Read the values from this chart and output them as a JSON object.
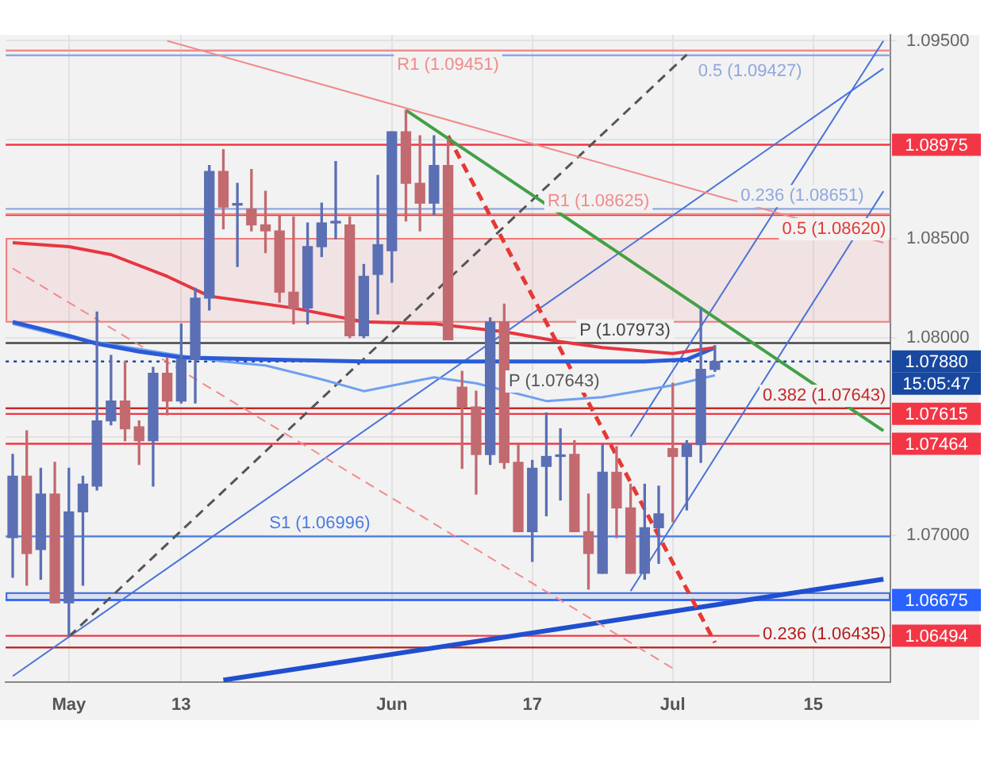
{
  "chart_data": {
    "type": "candlestick",
    "categories": [
      null,
      null,
      null,
      null,
      "May",
      null,
      null,
      null,
      null,
      null,
      null,
      null,
      "13",
      null,
      null,
      null,
      null,
      null,
      null,
      null,
      null,
      null,
      null,
      null,
      null,
      null,
      null,
      "Jun",
      null,
      null,
      null,
      null,
      null,
      null,
      null,
      null,
      null,
      "17",
      null,
      null,
      null,
      null,
      null,
      null,
      null,
      null,
      null,
      "Jul",
      null,
      null,
      null,
      null,
      null,
      null,
      null,
      null,
      null,
      "15",
      null,
      null,
      null,
      null,
      null
    ],
    "ohlc": [
      [
        1.0699,
        1.0741,
        1.0679,
        1.073
      ],
      [
        1.073,
        1.0753,
        1.0675,
        1.0691
      ],
      [
        1.0693,
        1.0734,
        1.0678,
        1.0721
      ],
      [
        1.0721,
        1.0737,
        1.0666,
        1.0666
      ],
      [
        1.0666,
        1.0734,
        1.0649,
        1.0712
      ],
      [
        1.0712,
        1.073,
        1.0675,
        1.0726
      ],
      [
        1.0725,
        1.0813,
        1.0723,
        1.0758
      ],
      [
        1.0758,
        1.0791,
        1.0756,
        1.0768
      ],
      [
        1.0768,
        1.0788,
        1.0748,
        1.0754
      ],
      [
        1.0755,
        1.0758,
        1.0736,
        1.0748
      ],
      [
        1.0748,
        1.0785,
        1.0725,
        1.0782
      ],
      [
        1.0782,
        1.079,
        1.0761,
        1.0768
      ],
      [
        1.0768,
        1.0807,
        1.0767,
        1.0789
      ],
      [
        1.0789,
        1.0825,
        1.0767,
        1.082
      ],
      [
        1.082,
        1.0887,
        1.0814,
        1.0884
      ],
      [
        1.0884,
        1.0895,
        1.0855,
        1.0866
      ],
      [
        1.0867,
        1.0878,
        1.0836,
        1.0867
      ],
      [
        1.0865,
        1.0885,
        1.0854,
        1.0857
      ],
      [
        1.0857,
        1.0874,
        1.0843,
        1.0854
      ],
      [
        1.0854,
        1.0862,
        1.0818,
        1.0823
      ],
      [
        1.0823,
        1.0861,
        1.0807,
        1.0815
      ],
      [
        1.0815,
        1.0858,
        1.0807,
        1.0846
      ],
      [
        1.0846,
        1.0868,
        1.0841,
        1.0858
      ],
      [
        1.0858,
        1.0889,
        1.085,
        1.0858
      ],
      [
        1.0857,
        1.0861,
        1.08,
        1.0801
      ],
      [
        1.0801,
        1.0837,
        1.08,
        1.0831
      ],
      [
        1.0832,
        1.0882,
        1.0812,
        1.0847
      ],
      [
        1.0844,
        1.0904,
        1.0828,
        1.0904
      ],
      [
        1.0904,
        1.0915,
        1.0859,
        1.0878
      ],
      [
        1.0878,
        1.0902,
        1.0854,
        1.0868
      ],
      [
        1.0868,
        1.0902,
        1.0862,
        1.0887
      ],
      [
        1.0887,
        1.09,
        1.0799,
        1.0799
      ],
      [
        1.0775,
        1.0783,
        1.0734,
        1.0765
      ],
      [
        1.0765,
        1.0773,
        1.0721,
        1.0741
      ],
      [
        1.0741,
        1.081,
        1.0736,
        1.0808
      ],
      [
        1.0808,
        1.0817,
        1.0734,
        1.0737
      ],
      [
        1.0737,
        1.0746,
        1.0702,
        1.0702
      ],
      [
        1.0702,
        1.0738,
        1.0687,
        1.0734
      ],
      [
        1.0735,
        1.0762,
        1.071,
        1.074
      ],
      [
        1.074,
        1.0754,
        1.0718,
        1.074
      ],
      [
        1.0741,
        1.0748,
        1.0702,
        1.0702
      ],
      [
        1.0702,
        1.0721,
        1.0673,
        1.0691
      ],
      [
        1.0681,
        1.0746,
        1.0681,
        1.0732
      ],
      [
        1.0732,
        1.0745,
        1.0699,
        1.0714
      ],
      [
        1.0714,
        1.0726,
        1.0681,
        1.0681
      ],
      [
        1.0681,
        1.0726,
        1.0678,
        1.0704
      ],
      [
        1.0704,
        1.0725,
        1.0686,
        1.0711
      ],
      [
        1.0744,
        1.0777,
        1.0707,
        1.074
      ],
      [
        1.074,
        1.0748,
        1.0713,
        1.0746
      ],
      [
        1.0746,
        1.0815,
        1.0737,
        1.0784
      ],
      [
        1.0784,
        1.0796,
        1.0783,
        1.0788
      ],
      null,
      null,
      null,
      null,
      null,
      null,
      null,
      null,
      null,
      null,
      null,
      null
    ],
    "colors": [
      "#5a6fb4",
      "#c26a70",
      "#5a6fb4",
      "#c26a70",
      "#5a6fb4",
      "#5a6fb4",
      "#5a6fb4",
      "#5a6fb4",
      "#c26a70",
      "#c26a70",
      "#5a6fb4",
      "#c26a70",
      "#5a6fb4",
      "#5a6fb4",
      "#5a6fb4",
      "#c26a70",
      "#5a6fb4",
      "#c26a70",
      "#c26a70",
      "#c26a70",
      "#c26a70",
      "#5a6fb4",
      "#5a6fb4",
      "#5a6fb4",
      "#c26a70",
      "#5a6fb4",
      "#5a6fb4",
      "#5a6fb4",
      "#c26a70",
      "#c26a70",
      "#5a6fb4",
      "#c26a70",
      "#c26a70",
      "#c26a70",
      "#5a6fb4",
      "#c26a70",
      "#c26a70",
      "#5a6fb4",
      "#5a6fb4",
      "#5a6fb4",
      "#c26a70",
      "#c26a70",
      "#5a6fb4",
      "#c26a70",
      "#c26a70",
      "#5a6fb4",
      "#5a6fb4",
      "#c26a70",
      "#5a6fb4",
      "#5a6fb4",
      "#5a6fb4",
      null,
      null,
      null,
      null,
      null,
      null,
      null,
      null,
      null,
      null,
      null,
      null
    ],
    "series": [
      {
        "type": "line",
        "color": "#e8353f",
        "values": [
          1.0848,
          null,
          null,
          null,
          1.0846,
          null,
          null,
          1.0842,
          null,
          null,
          null,
          1.0831,
          null,
          null,
          1.0821,
          null,
          null,
          1.0818,
          null,
          null,
          1.0815,
          null,
          null,
          null,
          null,
          1.0808,
          null,
          null,
          null,
          null,
          1.0807,
          null,
          null,
          null,
          null,
          1.0803,
          null,
          null,
          null,
          1.0798,
          null,
          null,
          1.0795,
          null,
          null,
          null,
          null,
          1.0792,
          null,
          null,
          1.0795,
          null,
          null,
          null,
          null,
          null,
          null,
          null,
          null,
          null,
          null,
          null,
          null
        ]
      },
      {
        "type": "line",
        "color": "#2a5bd7",
        "values": [
          1.0808,
          null,
          null,
          null,
          1.0801,
          null,
          1.0797,
          null,
          null,
          1.0793,
          null,
          null,
          1.079,
          null,
          null,
          null,
          null,
          null,
          1.0789,
          null,
          null,
          null,
          null,
          null,
          null,
          1.0788,
          null,
          null,
          null,
          null,
          null,
          null,
          null,
          null,
          null,
          1.0788,
          null,
          null,
          null,
          null,
          null,
          null,
          null,
          null,
          null,
          1.0788,
          null,
          null,
          1.0789,
          null,
          1.0795,
          null,
          null,
          null,
          null,
          null,
          null,
          null,
          null,
          null,
          null,
          null,
          null
        ]
      },
      {
        "type": "line",
        "color": "#6fa0f0",
        "values": [
          1.0807,
          null,
          null,
          null,
          1.08,
          null,
          null,
          null,
          null,
          null,
          null,
          1.0792,
          null,
          null,
          null,
          1.0788,
          null,
          null,
          1.0786,
          null,
          null,
          null,
          1.0779,
          null,
          null,
          1.0773,
          null,
          null,
          null,
          null,
          1.078,
          null,
          null,
          1.0777,
          null,
          null,
          null,
          null,
          1.0768,
          null,
          null,
          null,
          1.077,
          null,
          null,
          null,
          null,
          1.0776,
          null,
          null,
          1.0781,
          null,
          null,
          null,
          null,
          null,
          null,
          null,
          null,
          null,
          null,
          null,
          null
        ]
      },
      {
        "type": "line",
        "color": "#f08a8a",
        "values": [
          null,
          null,
          null,
          null,
          null,
          null,
          null,
          null,
          null,
          null,
          null,
          1.095,
          null,
          null,
          null,
          null,
          null,
          null,
          null,
          null,
          null,
          null,
          null,
          null,
          null,
          null,
          null,
          null,
          null,
          null,
          null,
          null,
          null,
          null,
          null,
          null,
          null,
          null,
          null,
          null,
          null,
          null,
          null,
          null,
          null,
          null,
          null,
          null,
          null,
          null,
          null,
          null,
          null,
          null,
          null,
          null,
          null,
          null,
          null,
          null,
          null,
          null,
          1.0848
        ]
      },
      {
        "type": "line",
        "color": "#43a047",
        "values": [
          null,
          null,
          null,
          null,
          null,
          null,
          null,
          null,
          null,
          null,
          null,
          null,
          null,
          null,
          null,
          null,
          null,
          null,
          null,
          null,
          null,
          null,
          null,
          null,
          null,
          null,
          null,
          null,
          1.0915,
          null,
          null,
          null,
          null,
          null,
          null,
          null,
          null,
          null,
          null,
          null,
          null,
          null,
          null,
          null,
          null,
          null,
          null,
          null,
          null,
          null,
          null,
          null,
          null,
          null,
          null,
          null,
          null,
          null,
          null,
          null,
          null,
          null,
          1.0753
        ]
      },
      {
        "type": "line",
        "color": "#e53935",
        "line_style": "dashed",
        "values": [
          null,
          null,
          null,
          null,
          null,
          null,
          null,
          null,
          null,
          null,
          null,
          null,
          null,
          null,
          null,
          null,
          null,
          null,
          null,
          null,
          null,
          null,
          null,
          null,
          null,
          null,
          null,
          null,
          null,
          null,
          null,
          1.0902,
          null,
          null,
          null,
          null,
          null,
          null,
          null,
          null,
          null,
          null,
          null,
          null,
          null,
          null,
          null,
          null,
          null,
          null,
          1.0646,
          null,
          null,
          null,
          null,
          null,
          null,
          null,
          null,
          null,
          null,
          null,
          null
        ]
      },
      {
        "type": "line",
        "color": "#f28b8b",
        "line_style": "dashed",
        "values": [
          1.0835,
          null,
          null,
          null,
          null,
          null,
          null,
          null,
          null,
          null,
          null,
          null,
          null,
          null,
          null,
          null,
          null,
          null,
          null,
          null,
          null,
          null,
          null,
          null,
          null,
          null,
          null,
          null,
          null,
          null,
          null,
          null,
          null,
          null,
          null,
          null,
          null,
          null,
          null,
          null,
          null,
          null,
          null,
          null,
          null,
          null,
          null,
          1.0633,
          null,
          null,
          null,
          null,
          null,
          null,
          null,
          null,
          null,
          null,
          null,
          null,
          null,
          null,
          null
        ]
      },
      {
        "type": "line",
        "color": "#555555",
        "line_style": "dashed",
        "values": [
          null,
          null,
          null,
          null,
          1.0649,
          null,
          null,
          null,
          null,
          null,
          null,
          null,
          null,
          null,
          null,
          null,
          null,
          null,
          null,
          null,
          null,
          null,
          null,
          null,
          null,
          null,
          null,
          null,
          null,
          null,
          null,
          null,
          null,
          null,
          null,
          null,
          null,
          null,
          null,
          null,
          null,
          null,
          null,
          null,
          null,
          null,
          null,
          null,
          1.0943,
          null,
          null,
          null,
          null,
          null,
          null,
          null,
          null,
          null,
          null,
          null,
          null,
          null,
          null
        ]
      },
      {
        "type": "line",
        "color": "#4a72d8",
        "values": [
          1.0629,
          null,
          null,
          null,
          null,
          null,
          null,
          null,
          null,
          null,
          null,
          null,
          null,
          null,
          null,
          null,
          null,
          null,
          null,
          null,
          null,
          null,
          null,
          null,
          null,
          null,
          null,
          null,
          null,
          null,
          null,
          null,
          null,
          null,
          null,
          null,
          null,
          null,
          null,
          null,
          null,
          null,
          null,
          null,
          null,
          null,
          null,
          null,
          null,
          null,
          null,
          null,
          null,
          null,
          null,
          null,
          null,
          null,
          null,
          null,
          null,
          null,
          1.0936
        ]
      },
      {
        "type": "line",
        "color": "#1f4fd0",
        "values": [
          null,
          null,
          null,
          null,
          null,
          null,
          null,
          null,
          null,
          null,
          null,
          null,
          null,
          null,
          null,
          1.0627,
          null,
          null,
          null,
          null,
          null,
          null,
          null,
          null,
          null,
          null,
          null,
          null,
          null,
          null,
          null,
          null,
          null,
          null,
          null,
          null,
          null,
          null,
          null,
          null,
          null,
          null,
          null,
          null,
          null,
          null,
          null,
          null,
          null,
          null,
          null,
          null,
          null,
          null,
          null,
          null,
          null,
          null,
          null,
          null,
          null,
          null,
          1.0678
        ]
      },
      {
        "type": "line",
        "color": "#4a72d8",
        "values": [
          null,
          null,
          null,
          null,
          null,
          null,
          null,
          null,
          null,
          null,
          null,
          null,
          null,
          null,
          null,
          null,
          null,
          null,
          null,
          null,
          null,
          null,
          null,
          null,
          null,
          null,
          null,
          null,
          null,
          null,
          null,
          null,
          null,
          null,
          null,
          null,
          null,
          null,
          null,
          null,
          null,
          null,
          null,
          null,
          1.075,
          null,
          null,
          null,
          null,
          null,
          null,
          null,
          null,
          null,
          null,
          null,
          null,
          null,
          null,
          null,
          null,
          null,
          1.095
        ]
      },
      {
        "type": "line",
        "color": "#4a72d8",
        "values": [
          null,
          null,
          null,
          null,
          null,
          null,
          null,
          null,
          null,
          null,
          null,
          null,
          null,
          null,
          null,
          null,
          null,
          null,
          null,
          null,
          null,
          null,
          null,
          null,
          null,
          null,
          null,
          null,
          null,
          null,
          null,
          null,
          null,
          null,
          null,
          null,
          null,
          null,
          null,
          null,
          null,
          null,
          null,
          null,
          1.0672,
          null,
          null,
          null,
          null,
          null,
          null,
          null,
          null,
          null,
          null,
          null,
          null,
          null,
          null,
          null,
          null,
          null,
          1.0874
        ]
      }
    ],
    "ylim": [
      1.0626,
      1.0953
    ],
    "yticks": [
      {
        "value": 1.07,
        "label": "1.07000"
      },
      {
        "value": 1.075,
        "label": null
      },
      {
        "value": 1.08,
        "label": "1.08000"
      },
      {
        "value": 1.085,
        "label": "1.08500"
      },
      {
        "value": 1.09,
        "label": null
      },
      {
        "value": 1.095,
        "label": "1.09500"
      }
    ],
    "grid": true,
    "marker": "none",
    "ref_lines": [
      {
        "axis": "y",
        "value": 1.09451,
        "label": "R1 (1.09451)",
        "color": "#f28b8b"
      },
      {
        "axis": "y",
        "value": 1.09427,
        "label": "0.5 (1.09427)",
        "color": "#8fa8e0"
      },
      {
        "axis": "y",
        "value": 1.08975,
        "label": "1.08975",
        "color": "#f23645"
      },
      {
        "axis": "y",
        "value": 1.08651,
        "label": "0.236 (1.08651)",
        "color": "#8fa8e0"
      },
      {
        "axis": "y",
        "value": 1.0862,
        "label": "0.5 (1.08620)",
        "color": "#e53935"
      },
      {
        "axis": "y",
        "value": 1.08625,
        "label": "R1 (1.08625)",
        "color": "#f28b8b"
      },
      {
        "axis": "y",
        "value": 1.07973,
        "label": "P (1.07973)",
        "color": "#444444"
      },
      {
        "axis": "y",
        "value": 1.0788,
        "label": "1.07880",
        "color": "#1848a0",
        "line_style": "dotted"
      },
      {
        "axis": "y",
        "value": 1.07643,
        "label": "P (1.07643)",
        "color": "#555555"
      },
      {
        "axis": "y",
        "value": 1.07643,
        "label": "0.382 (1.07643)",
        "color": "#c62828"
      },
      {
        "axis": "y",
        "value": 1.07615,
        "label": "1.07615",
        "color": "#f23645"
      },
      {
        "axis": "y",
        "value": 1.07464,
        "label": "1.07464",
        "color": "#f23645"
      },
      {
        "axis": "y",
        "value": 1.06996,
        "label": "S1 (1.06996)",
        "color": "#4a7be0"
      },
      {
        "axis": "y",
        "value": 1.06675,
        "label": "1.06675",
        "color": "#2962ff"
      },
      {
        "axis": "y",
        "value": 1.06494,
        "label": "1.06494",
        "color": "#f23645"
      },
      {
        "axis": "y",
        "value": 1.06435,
        "label": "0.236 (1.06435)",
        "color": "#b71c1c"
      }
    ],
    "bands": [
      {
        "axis": "y",
        "from": 1.0808,
        "to": 1.085,
        "color": "#ef7b7b"
      },
      {
        "axis": "y",
        "from": 1.06675,
        "to": 1.0671,
        "color": "#3a66d6"
      }
    ],
    "annotations": [
      "15:05:47"
    ]
  }
}
